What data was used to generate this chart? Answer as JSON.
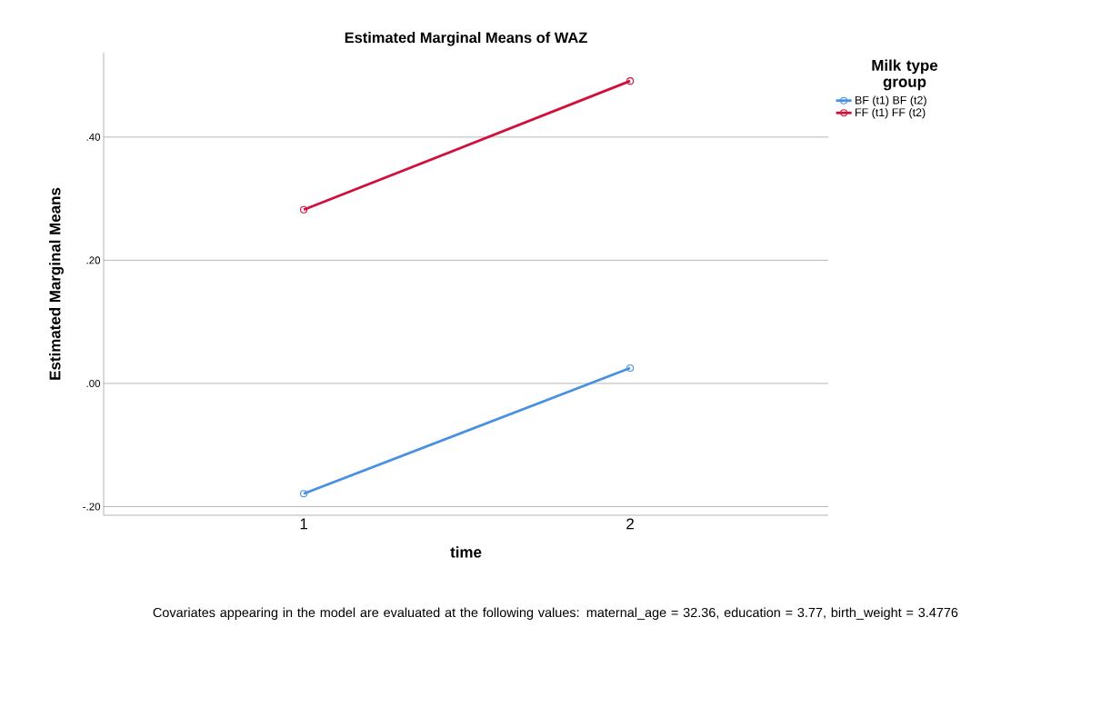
{
  "chart_data": {
    "type": "line",
    "title": "Estimated Marginal Means of WAZ",
    "xlabel": "time",
    "ylabel": "Estimated Marginal Means",
    "legend_title": "Milk type group",
    "categories": [
      "1",
      "2"
    ],
    "series": [
      {
        "name": "BF (t1) BF (t2)",
        "color": "#4a90e2",
        "values": [
          -0.179,
          0.025
        ]
      },
      {
        "name": "FF (t1) FF (t2)",
        "color": "#d0103a",
        "values": [
          0.282,
          0.491
        ]
      }
    ],
    "ylim": [
      -0.214,
      0.537
    ],
    "yticks": [
      {
        "value": -0.2,
        "label": "-.20"
      },
      {
        "value": 0,
        "label": ".00"
      },
      {
        "value": 0.2,
        "label": ".20"
      },
      {
        "value": 0.4,
        "label": ".40"
      }
    ],
    "grid": "y",
    "legend": "top right",
    "marker": "circle",
    "line_style": "solid",
    "annotations": [
      "Covariates appearing in the model are evaluated at the following values: maternal_age = 32.36, education = 3.77, birth_weight = 3.4776"
    ]
  }
}
